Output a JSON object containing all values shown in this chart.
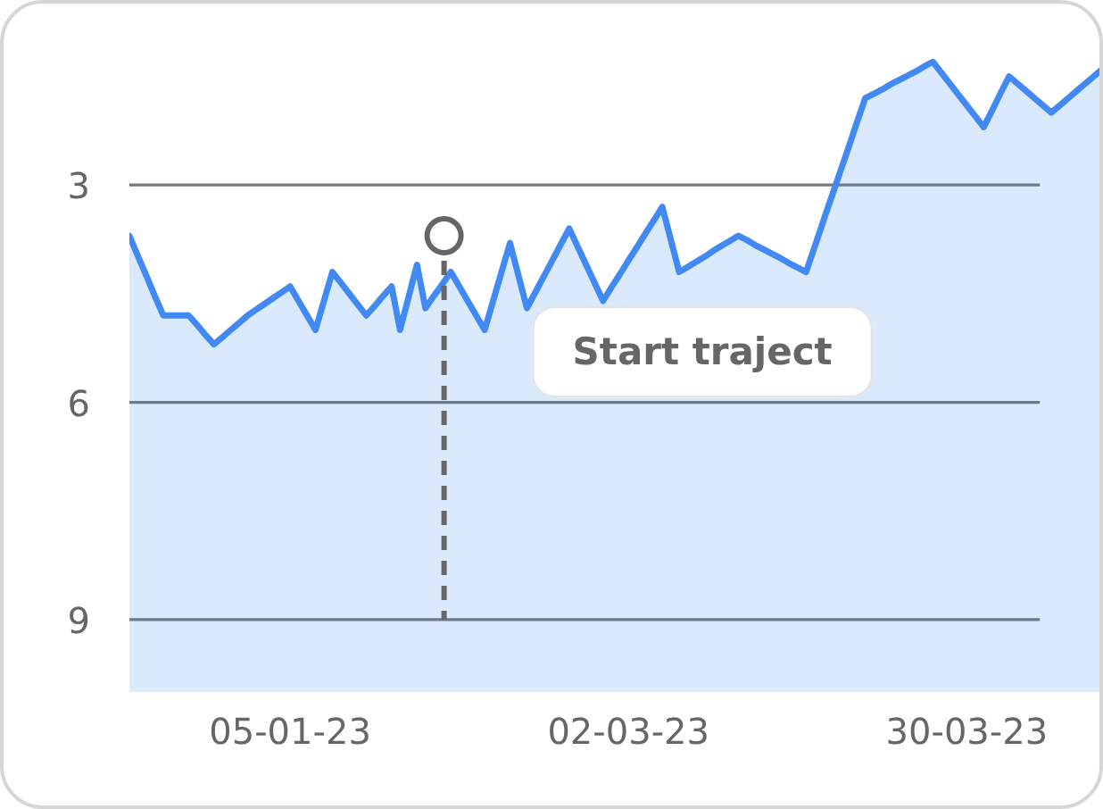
{
  "chart_data": {
    "type": "area",
    "categories": [
      null,
      null,
      null,
      null,
      null,
      null,
      null,
      null,
      null,
      null,
      null,
      null,
      null,
      null,
      null,
      null,
      null,
      null,
      null,
      "05-01-23",
      null,
      null,
      null,
      null,
      null,
      null,
      null,
      null,
      null,
      null,
      null,
      null,
      null,
      null,
      null,
      null,
      null,
      null,
      null,
      null,
      null,
      null,
      null,
      null,
      null,
      null,
      null,
      null,
      null,
      null,
      null,
      null,
      null,
      null,
      null,
      null,
      null,
      null,
      null,
      "02-03-23",
      null,
      null,
      null,
      null,
      null,
      null,
      null,
      null,
      null,
      null,
      null,
      null,
      null,
      null,
      null,
      null,
      null,
      null,
      null,
      null,
      null,
      null,
      null,
      null,
      null,
      null,
      null,
      null,
      null,
      null,
      null,
      null,
      null,
      null,
      null,
      null,
      null,
      null,
      null,
      "30-03-23",
      null,
      null,
      null,
      null,
      null,
      null,
      null,
      null,
      null,
      null,
      null,
      null,
      null,
      null,
      null,
      null
    ],
    "values": [
      3.7,
      3.98,
      4.25,
      4.53,
      4.8,
      4.8,
      4.8,
      4.8,
      4.93,
      5.07,
      5.2,
      5.1,
      5.0,
      4.9,
      4.8,
      4.72,
      4.64,
      4.56,
      4.48,
      4.4,
      4.6,
      4.8,
      5.0,
      4.6,
      4.2,
      4.35,
      4.5,
      4.65,
      4.8,
      4.67,
      4.53,
      4.4,
      5.0,
      4.55,
      4.1,
      4.7,
      4.53,
      4.37,
      4.2,
      4.4,
      4.6,
      4.8,
      5.0,
      4.6,
      4.2,
      3.8,
      4.25,
      4.7,
      4.48,
      4.26,
      4.04,
      3.82,
      3.6,
      3.85,
      4.1,
      4.35,
      4.6,
      4.41,
      4.23,
      4.04,
      3.86,
      3.67,
      3.49,
      3.3,
      3.75,
      4.2,
      4.13,
      4.06,
      3.99,
      3.91,
      3.84,
      3.77,
      3.7,
      3.76,
      3.83,
      3.89,
      3.95,
      4.01,
      4.08,
      4.14,
      4.2,
      3.86,
      3.51,
      3.17,
      2.83,
      2.49,
      2.14,
      1.8,
      1.74,
      1.68,
      1.61,
      1.55,
      1.49,
      1.43,
      1.36,
      1.3,
      1.45,
      1.6,
      1.75,
      1.9,
      2.05,
      2.2,
      1.97,
      1.73,
      1.5,
      1.6,
      1.7,
      1.8,
      1.9,
      2.0,
      1.9,
      1.8,
      1.7,
      1.6,
      1.5,
      1.4
    ],
    "color": "#4189f5",
    "ylim": [
      10,
      1
    ],
    "yticks": [
      3,
      6,
      9
    ],
    "grid": "y",
    "annotations": [
      "Start traject"
    ]
  }
}
